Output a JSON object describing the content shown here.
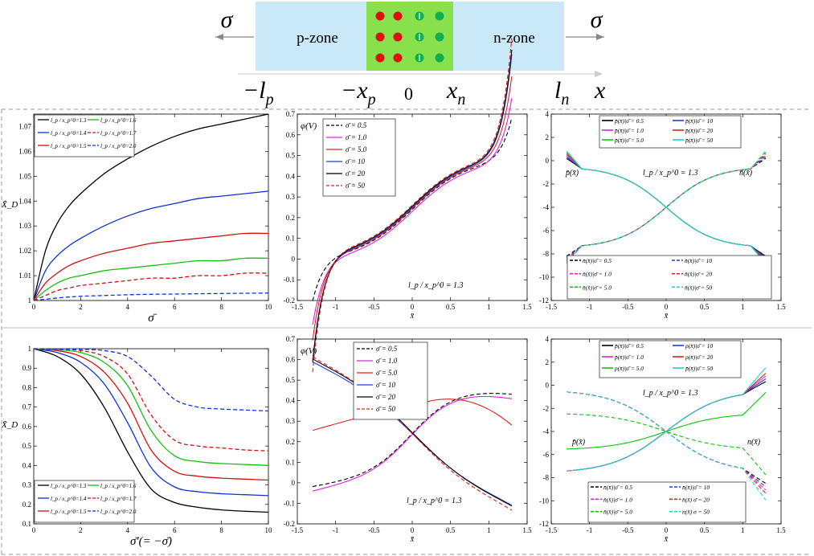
{
  "schematic": {
    "sigma_left": "σ",
    "sigma_right": "σ",
    "p_zone": "p-zone",
    "n_zone": "n-zone",
    "minus_lp_main": "−l",
    "minus_lp_sub": "p",
    "minus_xp_main": "−x",
    "minus_xp_sub": "p",
    "zero": "0",
    "xn_main": "x",
    "xn_sub": "n",
    "ln_main": "l",
    "ln_sub": "n",
    "x_axis": "x",
    "colors": {
      "zone": "#c9e8f8",
      "depletion": "#88e04c",
      "acceptor": "#e01010",
      "donor": "#10b050"
    }
  },
  "chart_data": [
    {
      "id": "panel-a",
      "type": "line",
      "ylabel": "X̄_D",
      "xlabel": "σ̄",
      "xlim": [
        0,
        10
      ],
      "ylim": [
        1.0,
        1.075
      ],
      "xticks": [
        "0",
        "2",
        "4",
        "6",
        "8",
        "10"
      ],
      "yticks": [
        "1",
        "1.01",
        "1.02",
        "1.03",
        "1.04",
        "1.05",
        "1.06",
        "1.07"
      ],
      "x": [
        0,
        0.5,
        1,
        1.5,
        2,
        3,
        4,
        5,
        6,
        7,
        8,
        9,
        10
      ],
      "series": [
        {
          "name": "l_p/x_p^0=1.3",
          "color": "#000000",
          "dash": false,
          "values": [
            1.0,
            1.02,
            1.031,
            1.038,
            1.043,
            1.051,
            1.057,
            1.062,
            1.066,
            1.069,
            1.071,
            1.073,
            1.075
          ]
        },
        {
          "name": "l_p/x_p^0=1.4",
          "color": "#1030d0",
          "dash": false,
          "values": [
            1.0,
            1.012,
            1.018,
            1.022,
            1.025,
            1.03,
            1.034,
            1.037,
            1.039,
            1.041,
            1.042,
            1.043,
            1.044
          ]
        },
        {
          "name": "l_p/x_p^0=1.5",
          "color": "#d01010",
          "dash": false,
          "values": [
            1.0,
            1.007,
            1.011,
            1.014,
            1.016,
            1.019,
            1.021,
            1.023,
            1.024,
            1.025,
            1.026,
            1.027,
            1.027
          ]
        },
        {
          "name": "l_p/x_p^0=1.6",
          "color": "#10c010",
          "dash": false,
          "values": [
            1.0,
            1.004,
            1.007,
            1.009,
            1.01,
            1.012,
            1.013,
            1.014,
            1.015,
            1.016,
            1.016,
            1.017,
            1.017
          ]
        },
        {
          "name": "l_p/x_p^0=1.7",
          "color": "#d01010",
          "dash": true,
          "values": [
            1.0,
            1.002,
            1.004,
            1.005,
            1.006,
            1.007,
            1.008,
            1.009,
            1.009,
            1.01,
            1.01,
            1.011,
            1.011
          ]
        },
        {
          "name": "l_p/x_p^0=2.0",
          "color": "#1030d0",
          "dash": true,
          "values": [
            1.0,
            1.0005,
            1.001,
            1.0014,
            1.0017,
            1.002,
            1.0023,
            1.0025,
            1.0026,
            1.0027,
            1.0028,
            1.0029,
            1.003
          ]
        }
      ],
      "legend_labels": [
        "l_p / x_p^0=1.3",
        "l_p / x_p^0=1.4",
        "l_p / x_p^0=1.5",
        "l_p / x_p^0=1.6",
        "l_p / x_p^0=1.7",
        "l_p / x_p^0=2.0"
      ]
    },
    {
      "id": "panel-b",
      "type": "line",
      "ylabel": "φ(V)",
      "xlabel": "x̄",
      "annotation": "l_p / x_p^0 = 1.3",
      "xlim": [
        -1.5,
        1.5
      ],
      "ylim": [
        -0.2,
        0.7
      ],
      "xticks": [
        "-1.5",
        "-1",
        "-0.5",
        "0",
        "0.5",
        "1",
        "1.5"
      ],
      "yticks": [
        "-0.2",
        "-0.1",
        "0",
        "0.1",
        "0.2",
        "0.3",
        "0.4",
        "0.5",
        "0.6",
        "0.7"
      ],
      "legend": [
        "σ̄ = 0.5",
        "σ̄ = 1.0",
        "σ̄ = 5.0",
        "σ̄ = 10",
        "σ̄ = 20",
        "σ̄ = 50"
      ]
    },
    {
      "id": "panel-c",
      "type": "line",
      "xlabel": "x̄",
      "annotation": "l_p / x_p^0 = 1.3",
      "label_p": "p̄(x̄)",
      "label_n": "n̄(x̄)",
      "xlim": [
        -1.5,
        1.5
      ],
      "ylim": [
        -12,
        4
      ],
      "xticks": [
        "-1.5",
        "-1",
        "-0.5",
        "0",
        "0.5",
        "1",
        "1.5"
      ],
      "yticks": [
        "-12",
        "-10",
        "-8",
        "-6",
        "-4",
        "-2",
        "0",
        "2",
        "4"
      ],
      "legend_top": [
        "p̄(x̄)|σ̄ = 0.5",
        "p̄(x̄)|σ̄ = 10",
        "p̄(x̄)|σ̄ = 1.0",
        "p̄(x̄)|σ̄ = 20",
        "p̄(x̄)|σ̄ = 5.0",
        "p̄(x̄)|σ̄ = 50"
      ],
      "legend_bottom": [
        "n̄(x̄)|σ̄ = 0.5",
        "n̄(x̄)|σ̄ = 10",
        "n̄(x̄)|σ̄ = 1.0",
        "n̄(x̄)|σ̄ = 20",
        "n̄(x̄)|σ̄ = 5.0",
        "n̄(x̄)|σ̄ = 50"
      ]
    },
    {
      "id": "panel-d",
      "type": "line",
      "ylabel": "X̄_D",
      "xlabel": "σ̄′(= −σ̄)",
      "xlim": [
        0,
        10
      ],
      "ylim": [
        0.1,
        1.0
      ],
      "xticks": [
        "0",
        "2",
        "4",
        "6",
        "8",
        "10"
      ],
      "yticks": [
        "0.1",
        "0.2",
        "0.3",
        "0.4",
        "0.5",
        "0.6",
        "0.7",
        "0.8",
        "0.9",
        "1"
      ],
      "x": [
        0,
        1,
        2,
        3,
        4,
        5,
        6,
        7,
        8,
        9,
        10
      ],
      "series": [
        {
          "name": "l_p/x_p^0=1.3",
          "color": "#000000",
          "dash": false,
          "values": [
            1.0,
            0.96,
            0.87,
            0.7,
            0.47,
            0.28,
            0.21,
            0.185,
            0.172,
            0.165,
            0.16
          ]
        },
        {
          "name": "l_p/x_p^0=1.4",
          "color": "#1030d0",
          "dash": false,
          "values": [
            1.0,
            0.98,
            0.93,
            0.82,
            0.62,
            0.39,
            0.29,
            0.265,
            0.255,
            0.25,
            0.245
          ]
        },
        {
          "name": "l_p/x_p^0=1.5",
          "color": "#d01010",
          "dash": false,
          "values": [
            1.0,
            0.99,
            0.96,
            0.88,
            0.72,
            0.48,
            0.37,
            0.345,
            0.335,
            0.33,
            0.325
          ]
        },
        {
          "name": "l_p/x_p^0=1.6",
          "color": "#10c010",
          "dash": false,
          "values": [
            1.0,
            0.995,
            0.98,
            0.93,
            0.81,
            0.58,
            0.45,
            0.42,
            0.41,
            0.405,
            0.4
          ]
        },
        {
          "name": "l_p/x_p^0=1.7",
          "color": "#d01010",
          "dash": true,
          "values": [
            1.0,
            0.997,
            0.99,
            0.96,
            0.87,
            0.66,
            0.53,
            0.5,
            0.49,
            0.48,
            0.475
          ]
        },
        {
          "name": "l_p/x_p^0=2.0",
          "color": "#1030d0",
          "dash": true,
          "values": [
            1.0,
            0.999,
            0.997,
            0.99,
            0.96,
            0.86,
            0.74,
            0.7,
            0.69,
            0.685,
            0.68
          ]
        }
      ],
      "legend_labels": [
        "l_p / x_p^0=1.3",
        "l_p / x_p^0=1.4",
        "l_p / x_p^0=1.5",
        "l_p / x_p^0=1.6",
        "l_p / x_p^0=1.7",
        "l_p / x_p^0=2.0"
      ]
    },
    {
      "id": "panel-e",
      "type": "line",
      "ylabel": "φ(V)",
      "xlabel": "x̄",
      "annotation": "l_p / x_p^0 = 1.3",
      "xlim": [
        -1.5,
        1.5
      ],
      "ylim": [
        -0.2,
        0.7
      ],
      "xticks": [
        "-1.5",
        "-1",
        "-0.5",
        "0",
        "0.5",
        "1",
        "1.5"
      ],
      "yticks": [
        "-0.2",
        "-0.1",
        "0",
        "0.1",
        "0.2",
        "0.3",
        "0.4",
        "0.5",
        "0.6",
        "0.7"
      ],
      "legend": [
        "σ̄ = 0.5",
        "σ̄ = 1.0",
        "σ̄ = 5.0",
        "σ̄ = 10",
        "σ̄ = 20",
        "σ̄ = 50"
      ]
    },
    {
      "id": "panel-f",
      "type": "line",
      "xlabel": "x̄",
      "annotation": "l_p / x_p^0 = 1.3",
      "label_p": "p̄(x̄)",
      "label_n": "n(x̄)",
      "xlim": [
        -1.5,
        1.5
      ],
      "ylim": [
        -12,
        4
      ],
      "xticks": [
        "-1.5",
        "-1",
        "-0.5",
        "0",
        "0.5",
        "1",
        "1.5"
      ],
      "yticks": [
        "-12",
        "-10",
        "-8",
        "-6",
        "-4",
        "-2",
        "0",
        "2",
        "4"
      ],
      "legend_top": [
        "p̄(x̄)|σ̄ = 0.5",
        "p(x̄)|σ̄ = 10",
        "p̄(x̄)|σ̄ = 1.0",
        "p(x̄)|σ̄ = 20",
        "p(x̄)|σ̄ = 5.0",
        "p̄(x̄)|σ̄ = 50"
      ],
      "legend_bottom": [
        "n̄(x̄)|σ̄ = 0.5",
        "n̄(x̄)|σ̄ = 10",
        "n̄(x̄)|σ̄ = 1.0",
        "n̄(x̄) σ̄ = 20",
        "n̄(x̄)|σ̄ = 5.0",
        "n(x̄) σ = 50"
      ]
    }
  ]
}
